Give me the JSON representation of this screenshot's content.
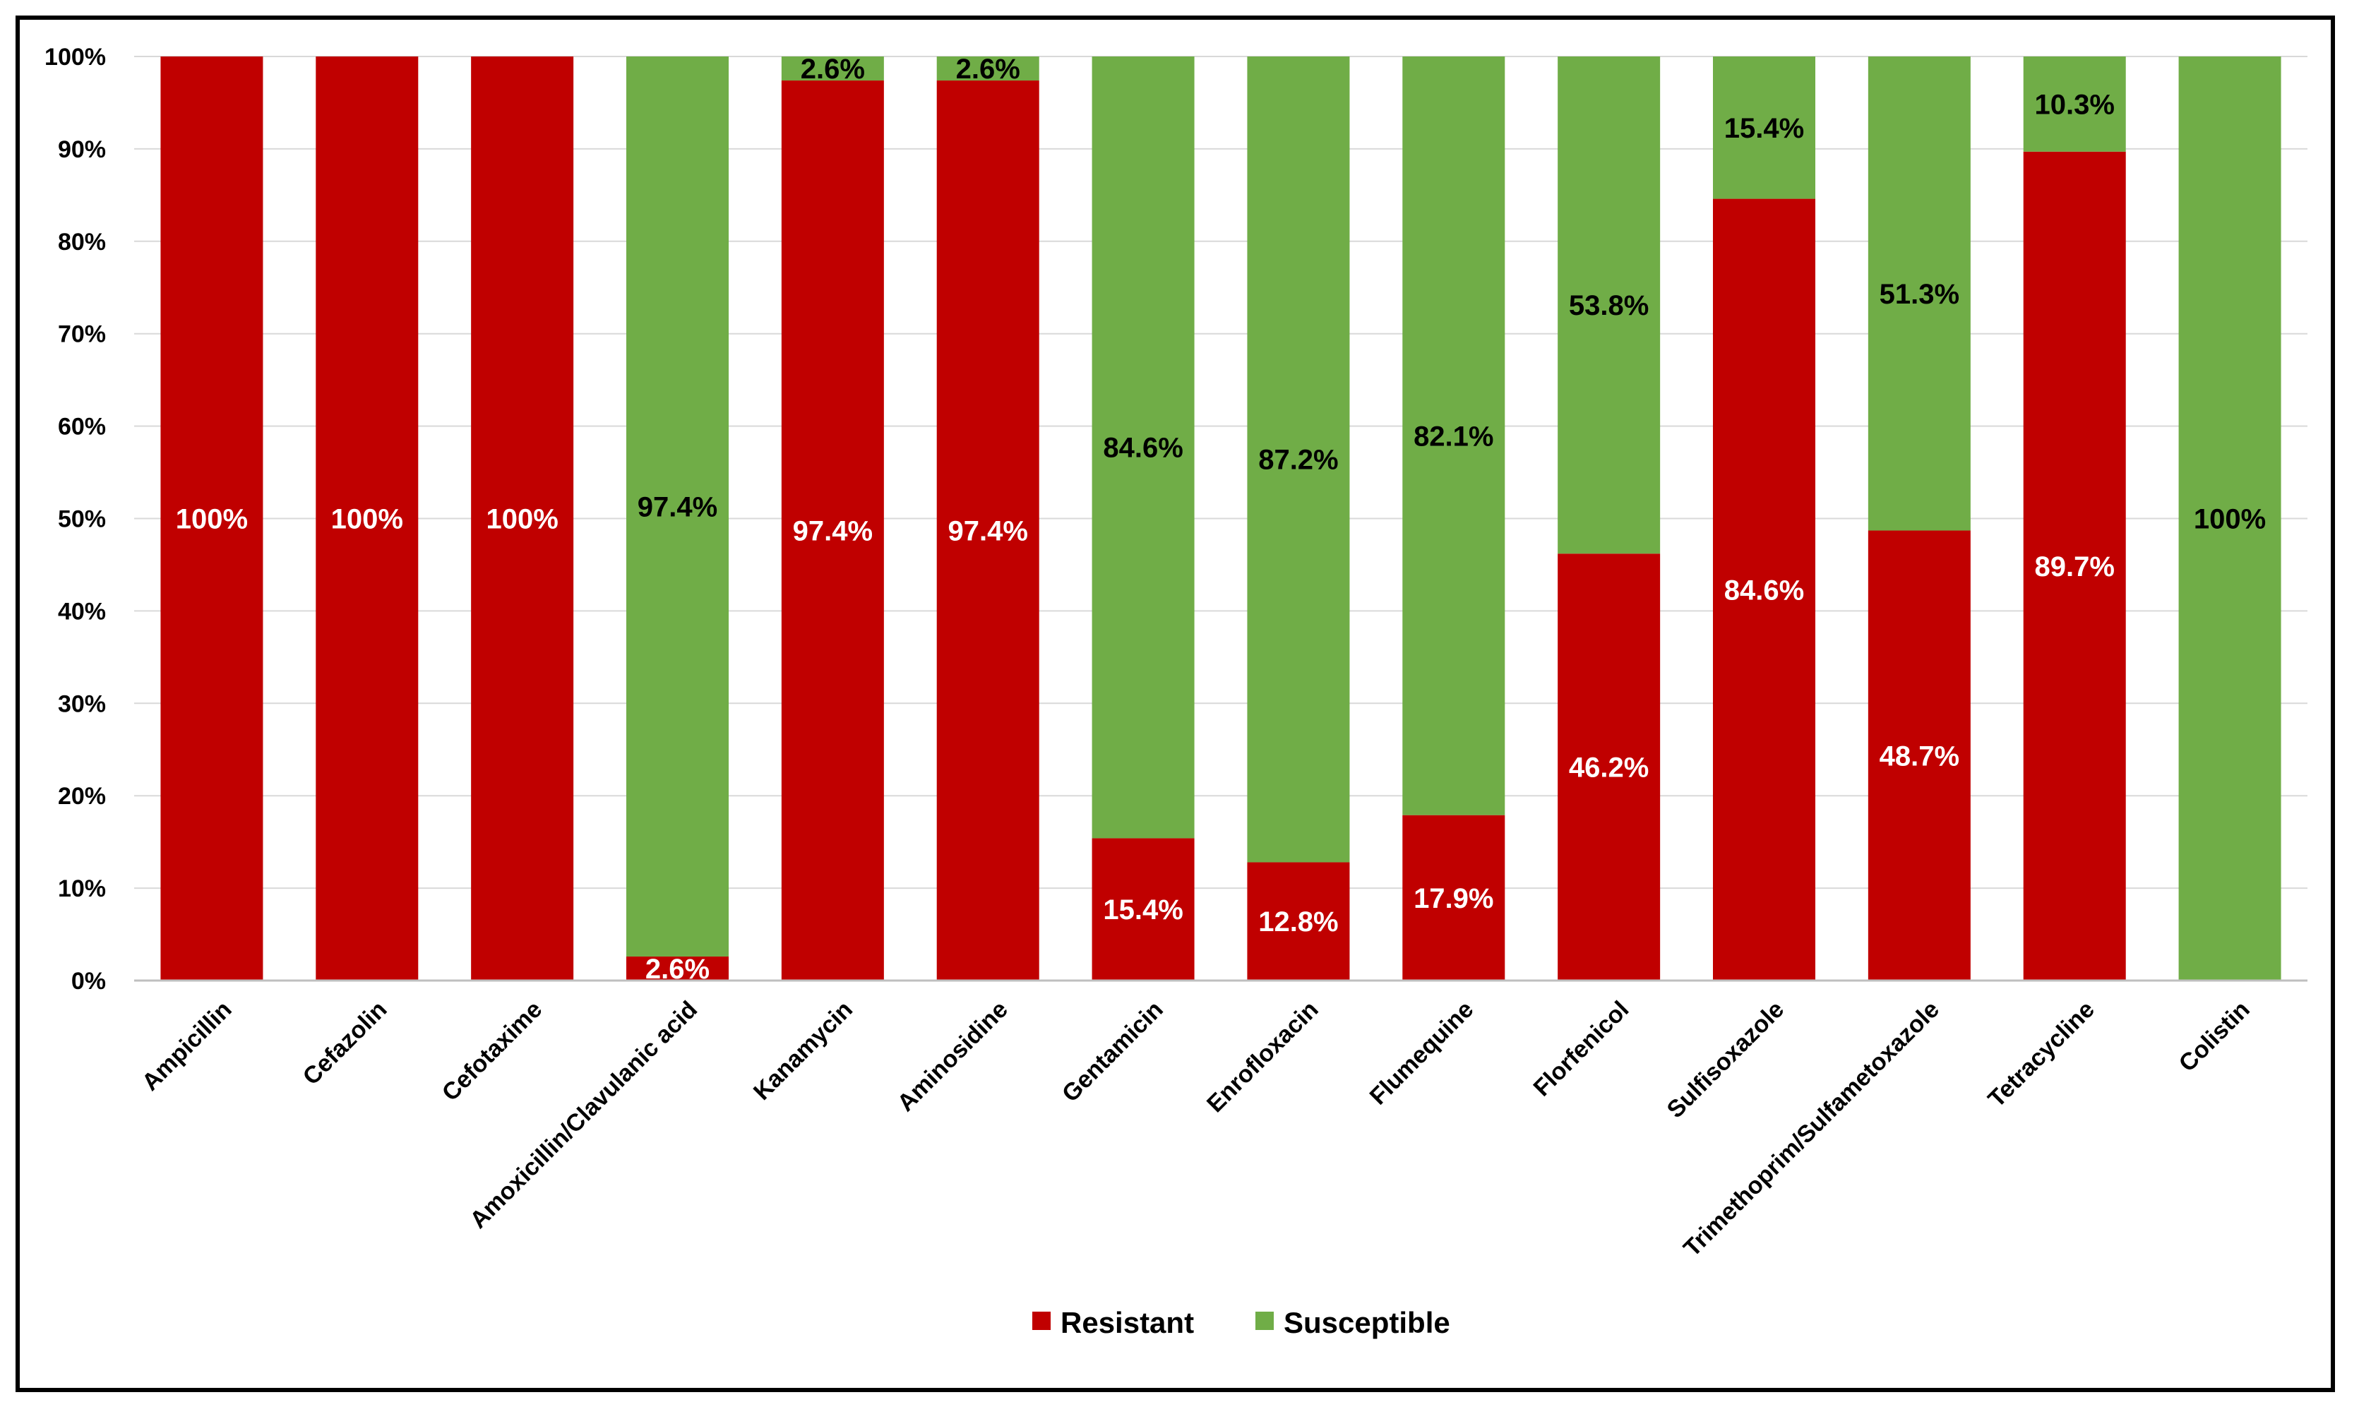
{
  "chart_data": {
    "type": "bar",
    "stacked": true,
    "title": "",
    "xlabel": "",
    "ylabel": "",
    "ylim": [
      0,
      100
    ],
    "y_ticks": [
      "0%",
      "10%",
      "20%",
      "30%",
      "40%",
      "50%",
      "60%",
      "70%",
      "80%",
      "90%",
      "100%"
    ],
    "grid": true,
    "legend_position": "bottom-center",
    "categories": [
      "Ampicillin",
      "Cefazolin",
      "Cefotaxime",
      "Amoxicillin/Clavulanic acid",
      "Kanamycin",
      "Aminosidine",
      "Gentamicin",
      "Enrofloxacin",
      "Flumequine",
      "Florfenicol",
      "Sulfisoxazole",
      "Trimethoprim/Sulfametoxazole",
      "Tetracycline",
      "Colistin"
    ],
    "series": [
      {
        "name": "Resistant",
        "color": "#c00000",
        "label_color": "#ffffff",
        "values": [
          100,
          100,
          100,
          2.6,
          97.4,
          97.4,
          15.4,
          12.8,
          17.9,
          46.2,
          84.6,
          48.7,
          89.7,
          0
        ],
        "labels": [
          "100%",
          "100%",
          "100%",
          "2.6%",
          "97.4%",
          "97.4%",
          "15.4%",
          "12.8%",
          "17.9%",
          "46.2%",
          "84.6%",
          "48.7%",
          "89.7%",
          ""
        ]
      },
      {
        "name": "Susceptible",
        "color": "#70ad47",
        "label_color": "#000000",
        "values": [
          0,
          0,
          0,
          97.4,
          2.6,
          2.6,
          84.6,
          87.2,
          82.1,
          53.8,
          15.4,
          51.3,
          10.3,
          100
        ],
        "labels": [
          "",
          "",
          "",
          "97.4%",
          "2.6%",
          "2.6%",
          "84.6%",
          "87.2%",
          "82.1%",
          "53.8%",
          "15.4%",
          "51.3%",
          "10.3%",
          "100%"
        ]
      }
    ]
  }
}
